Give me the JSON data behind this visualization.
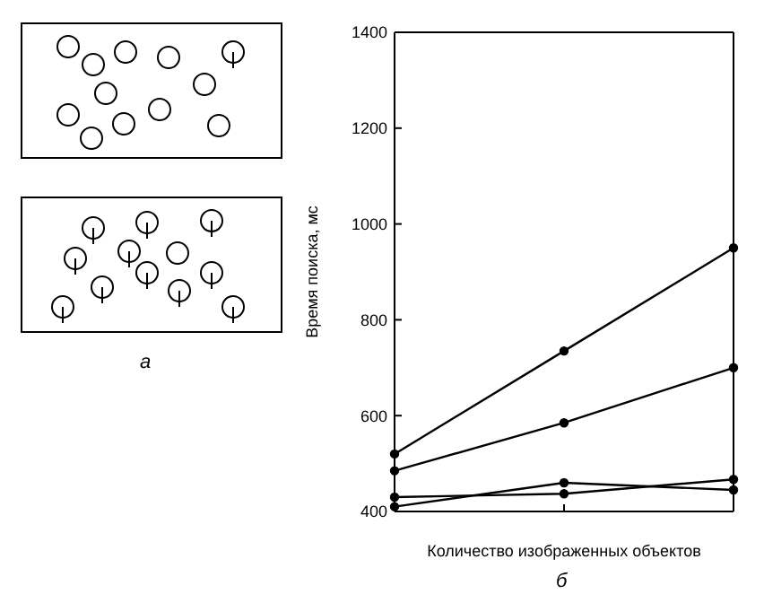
{
  "chart_data": {
    "type": "line",
    "xlabel": "Количество изображенных объектов",
    "ylabel": "Время поиска, мс",
    "categories": [
      null,
      null,
      null
    ],
    "series": [
      {
        "color": "#000000",
        "values": [
          520,
          735,
          950
        ]
      },
      {
        "color": "#000000",
        "values": [
          485,
          585,
          700
        ]
      },
      {
        "color": "#000000",
        "values": [
          410,
          460,
          445
        ]
      },
      {
        "color": "#000000",
        "values": [
          430,
          437,
          467
        ]
      }
    ],
    "ylim": [
      400,
      1400
    ],
    "yticks": [
      400,
      600,
      800,
      1000,
      1200,
      1400
    ],
    "marker": "circle",
    "annotations": [
      "а",
      "б"
    ]
  }
}
